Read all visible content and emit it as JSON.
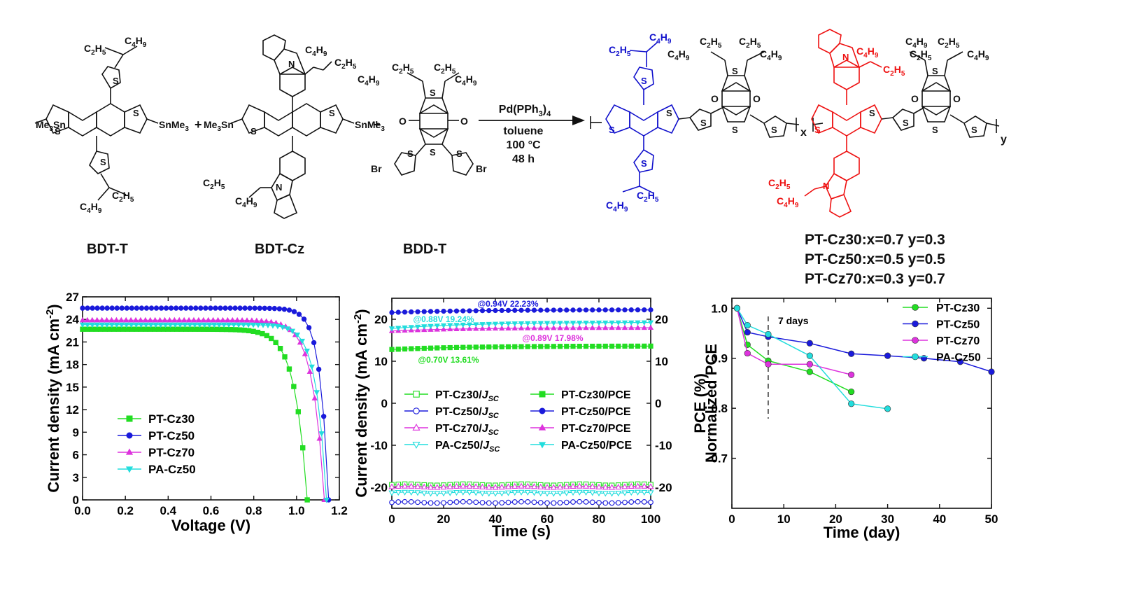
{
  "scheme": {
    "reagents": {
      "catalyst": "Pd(PPh",
      "catalyst_sub": "3",
      "catalyst_close": ")",
      "catalyst_sub2": "4",
      "solvent": "toluene",
      "temperature": "100 °C",
      "time": "48 h"
    },
    "labels": {
      "bdt_t": "BDT-T",
      "bdt_cz": "BDT-Cz",
      "bdd_t": "BDD-T"
    },
    "atoms": {
      "me3sn": "Me",
      "snme3": "SnMe",
      "sub3": "3",
      "s": "S",
      "n": "N",
      "o": "O",
      "br": "Br",
      "plus": "+",
      "c": "C",
      "h": "H",
      "sub2": "2",
      "sub4": "4",
      "sub5": "5",
      "sub9": "9",
      "x": "x",
      "y": "y"
    },
    "ratios": [
      "PT-Cz30:x=0.7  y=0.3",
      "PT-Cz50:x=0.5  y=0.5",
      "PT-Cz70:x=0.3  y=0.7"
    ],
    "colors": {
      "blue_unit": "#1010cc",
      "red_unit": "#ee1111"
    }
  },
  "chart_data": [
    {
      "type": "line",
      "xlabel": "Voltage (V)",
      "ylabel": "Current density (mA cm",
      "ylabel_sup": "-2",
      "ylabel_close": ")",
      "xlim": [
        0.0,
        1.2
      ],
      "ylim": [
        0,
        27
      ],
      "xticks": [
        "0.0",
        "0.2",
        "0.4",
        "0.6",
        "0.8",
        "1.0",
        "1.2"
      ],
      "yticks": [
        "0",
        "3",
        "6",
        "9",
        "12",
        "15",
        "18",
        "21",
        "24",
        "27"
      ],
      "legend_position": "lower-left",
      "series": [
        {
          "name": "PT-Cz30",
          "color": "#22dd22",
          "marker": "square",
          "jsc": 22.7,
          "voc": 1.05,
          "knee": 0.055
        },
        {
          "name": "PT-Cz50",
          "color": "#1a1adb",
          "marker": "circle",
          "jsc": 25.5,
          "voc": 1.15,
          "knee": 0.035
        },
        {
          "name": "PT-Cz70",
          "color": "#dd33dd",
          "marker": "triangle-up",
          "jsc": 23.9,
          "voc": 1.13,
          "knee": 0.048
        },
        {
          "name": "PA-Cz50",
          "color": "#22dddd",
          "marker": "triangle-down",
          "jsc": 23.3,
          "voc": 1.14,
          "knee": 0.042
        }
      ]
    },
    {
      "type": "line",
      "xlabel": "Time (s)",
      "ylabel": "Current density (mA cm",
      "ylabel_sup": "-2",
      "ylabel_close": ")",
      "xlim": [
        0,
        100
      ],
      "ylim": [
        -25,
        25
      ],
      "xticks": [
        "0",
        "20",
        "40",
        "60",
        "80",
        "100"
      ],
      "yticks": [
        "-20",
        "-10",
        "0",
        "10",
        "20"
      ],
      "y2label": "PCE (%)",
      "y2ticks": [
        "-20",
        "-10",
        "0",
        "10",
        "20"
      ],
      "legend_position": "center",
      "series": [
        {
          "name": "PT-Cz30/",
          "sub": "SC",
          "j": "J",
          "kind": "jsc",
          "color": "#22dd22",
          "marker": "square-open",
          "value": -19.4
        },
        {
          "name": "PT-Cz50/",
          "sub": "SC",
          "j": "J",
          "kind": "jsc",
          "color": "#1a1adb",
          "marker": "circle-open",
          "value": -23.6
        },
        {
          "name": "PT-Cz70/",
          "sub": "SC",
          "j": "J",
          "kind": "jsc",
          "color": "#dd33dd",
          "marker": "triangle-open",
          "value": -19.9
        },
        {
          "name": "PA-Cz50/",
          "sub": "SC",
          "j": "J",
          "kind": "jsc",
          "color": "#22dddd",
          "marker": "triangle-down-open",
          "value": -21.3
        },
        {
          "name": "PT-Cz30/PCE",
          "kind": "pce",
          "color": "#22dd22",
          "marker": "square",
          "start": 12.8,
          "end": 13.61
        },
        {
          "name": "PT-Cz50/PCE",
          "kind": "pce",
          "color": "#1a1adb",
          "marker": "circle",
          "start": 21.6,
          "end": 22.23
        },
        {
          "name": "PT-Cz70/PCE",
          "kind": "pce",
          "color": "#dd33dd",
          "marker": "triangle-up",
          "start": 17.2,
          "end": 17.98
        },
        {
          "name": "PA-Cz50/PCE",
          "kind": "pce",
          "color": "#22dddd",
          "marker": "triangle-down",
          "start": 17.8,
          "end": 19.24
        }
      ],
      "annotations": [
        {
          "text": "@0.94V  22.23%",
          "color": "#1a1adb"
        },
        {
          "text": "@0.88V  19.24%",
          "color": "#22dddd"
        },
        {
          "text": "@0.89V  17.98%",
          "color": "#dd33dd"
        },
        {
          "text": "@0.70V  13.61%",
          "color": "#22dd22"
        }
      ]
    },
    {
      "type": "line",
      "xlabel": "Time (day)",
      "ylabel": "Normalized PCE",
      "xlim": [
        0,
        50
      ],
      "ylim": [
        0.6,
        1.02
      ],
      "xticks": [
        "0",
        "10",
        "20",
        "30",
        "40",
        "50"
      ],
      "yticks": [
        "0.7",
        "0.8",
        "0.9",
        "1.0"
      ],
      "legend_position": "top-right",
      "annotation": "7 days",
      "vline_x": 7,
      "series": [
        {
          "name": "PT-Cz30",
          "color": "#22dd22",
          "x": [
            1,
            3,
            7,
            15,
            23
          ],
          "y": [
            1.0,
            0.927,
            0.895,
            0.873,
            0.833
          ]
        },
        {
          "name": "PT-Cz50",
          "color": "#1a1adb",
          "x": [
            1,
            3,
            7,
            15,
            23,
            30,
            37,
            44,
            50
          ],
          "y": [
            1.0,
            0.952,
            0.943,
            0.93,
            0.909,
            0.905,
            0.9,
            0.893,
            0.873
          ]
        },
        {
          "name": "PT-Cz70",
          "color": "#dd33dd",
          "x": [
            1,
            3,
            7,
            15,
            23
          ],
          "y": [
            1.0,
            0.91,
            0.888,
            0.888,
            0.867
          ]
        },
        {
          "name": "PA-Cz50",
          "color": "#22dddd",
          "x": [
            1,
            3,
            7,
            15,
            23,
            30
          ],
          "y": [
            1.0,
            0.966,
            0.948,
            0.905,
            0.809,
            0.799
          ]
        }
      ]
    }
  ]
}
